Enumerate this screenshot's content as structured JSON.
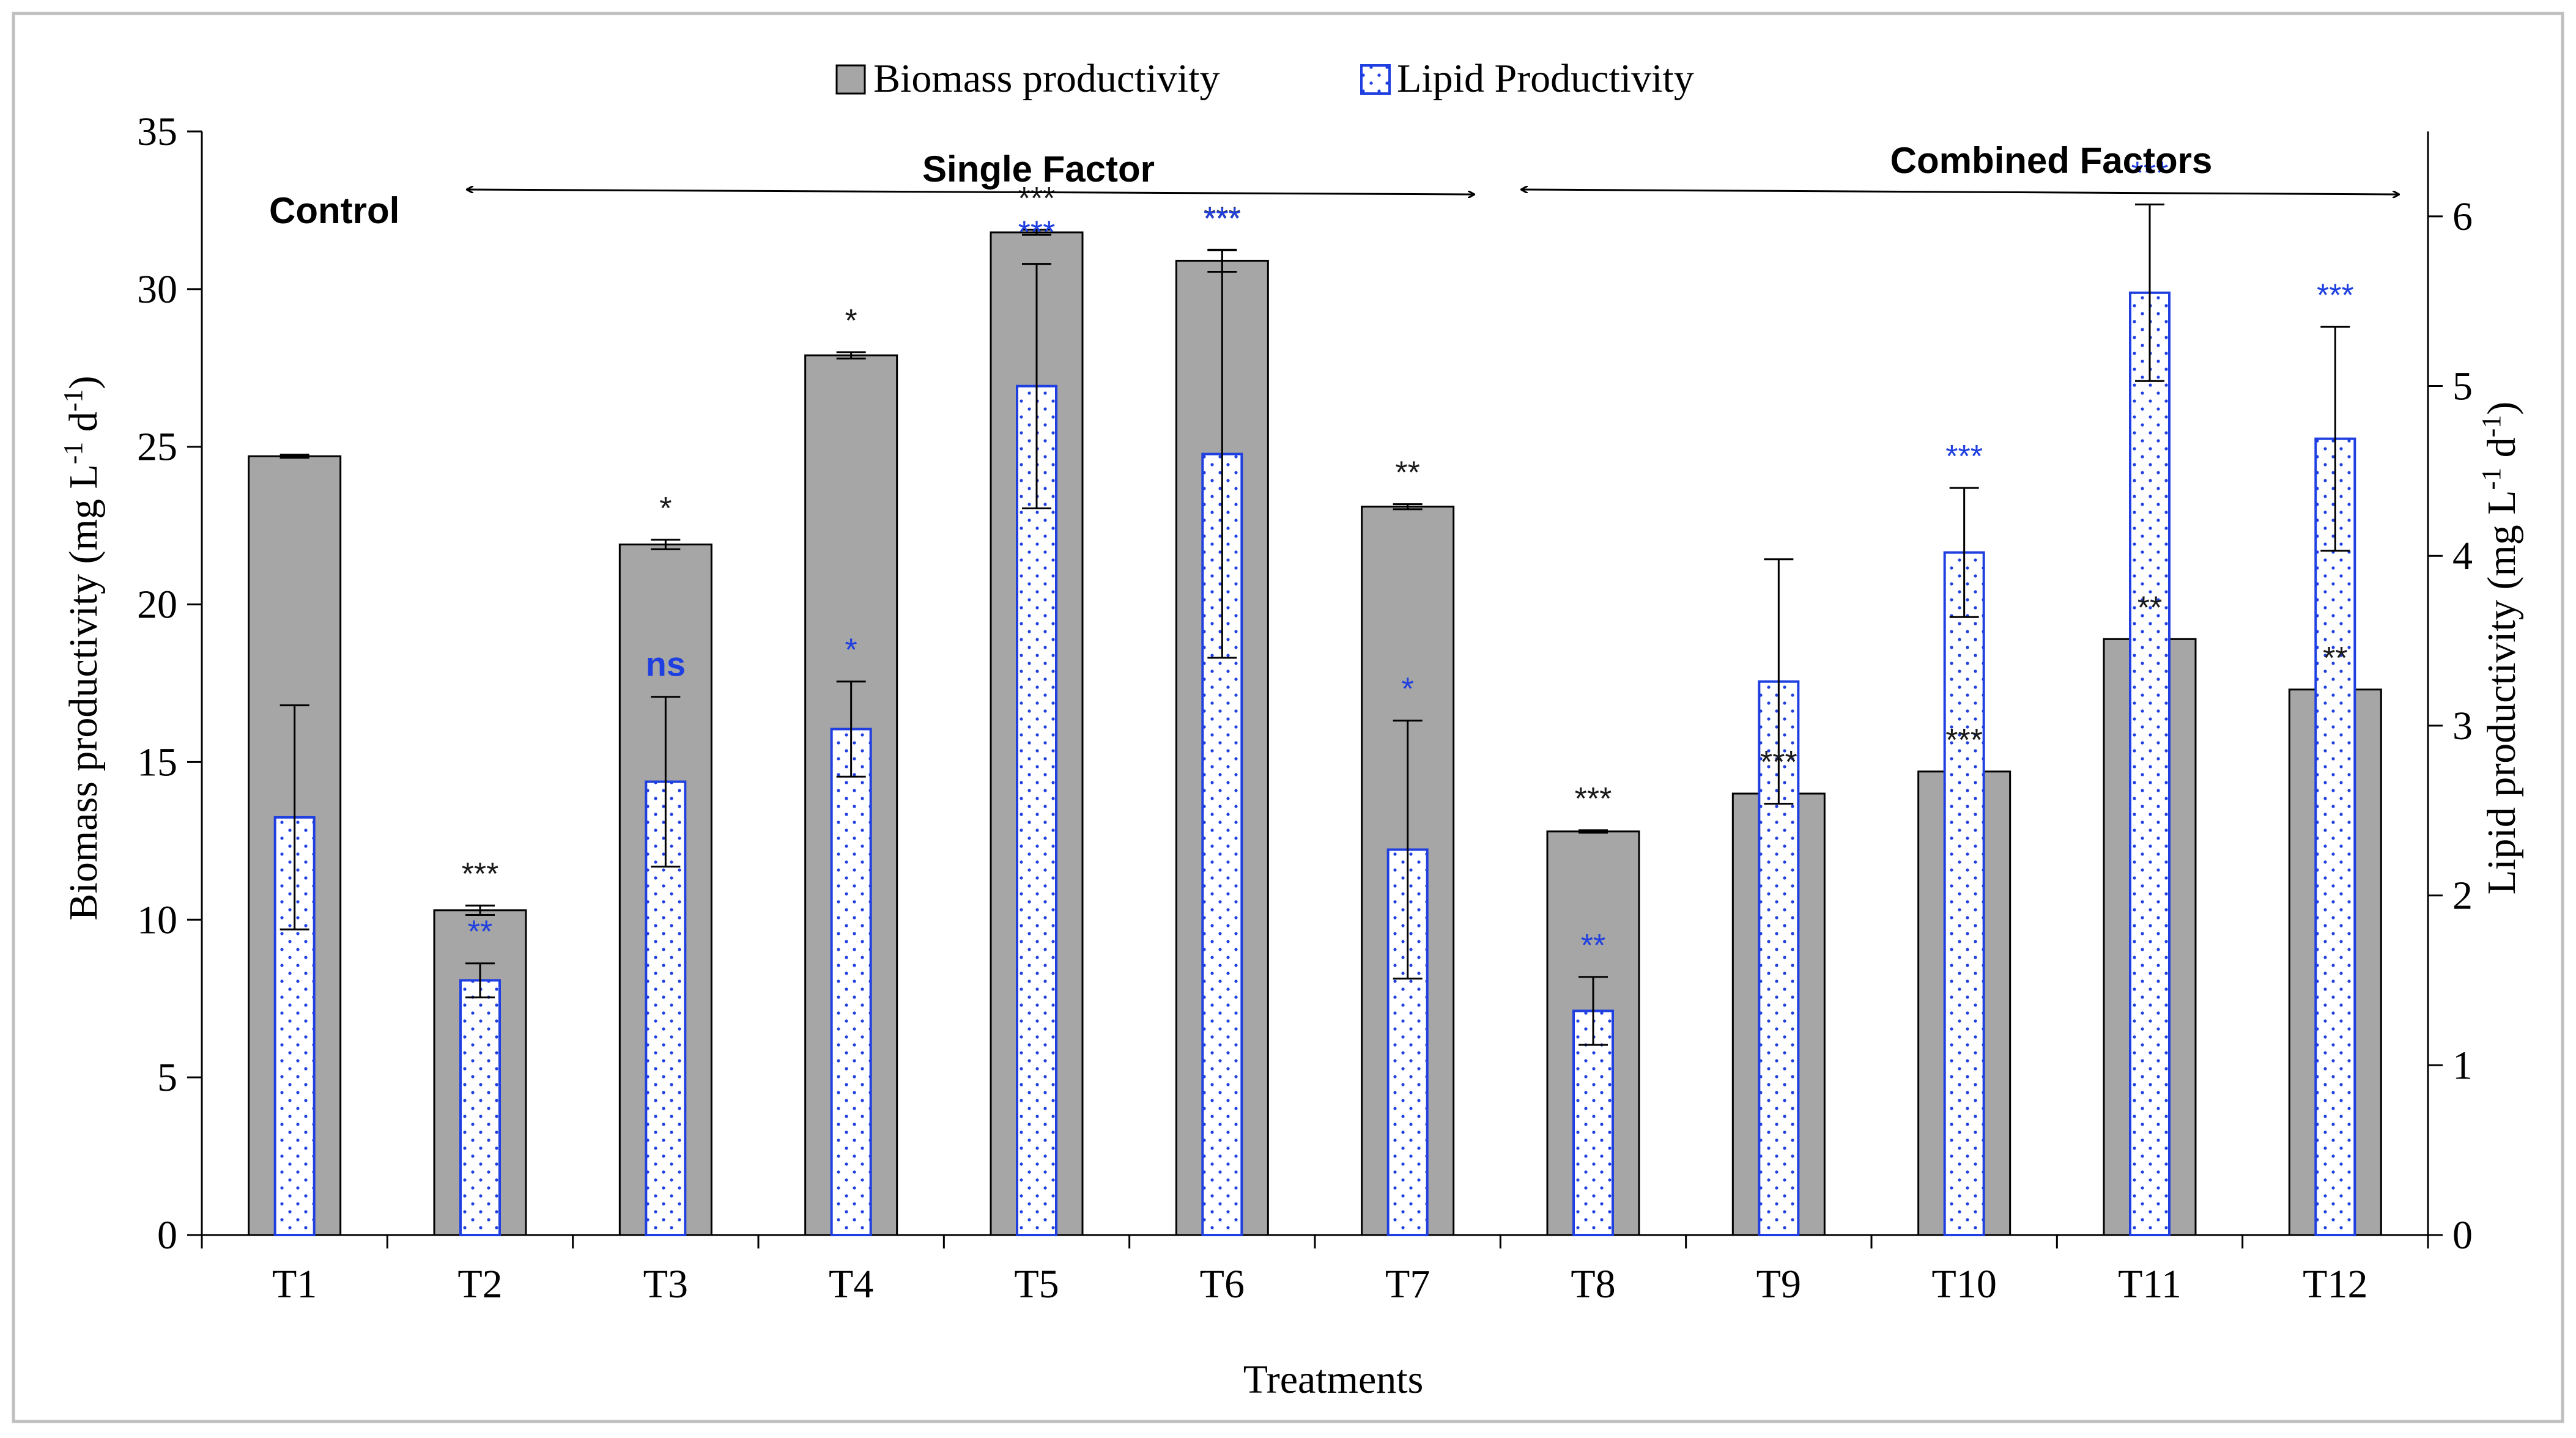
{
  "chart_data": {
    "type": "bar",
    "categories": [
      "T1",
      "T2",
      "T3",
      "T4",
      "T5",
      "T6",
      "T7",
      "T8",
      "T9",
      "T10",
      "T11",
      "T12"
    ],
    "xlabel": "Treatments",
    "ylabel_left": "Biomass  productivity  (mg  L",
    "ylabel_left_sup1": "-1",
    "ylabel_left_mid": " d",
    "ylabel_left_sup2": "-1",
    "ylabel_left_end": ")",
    "ylabel_right": "Lipid productivity  (mg  L",
    "ylabel_right_sup1": "-1",
    "ylabel_right_mid": " d",
    "ylabel_right_sup2": "-1",
    "ylabel_right_end": ")",
    "ylim_left": [
      0,
      35
    ],
    "yticks_left": [
      0,
      5,
      10,
      15,
      20,
      25,
      30,
      35
    ],
    "ylim_right": [
      0,
      6.5
    ],
    "yticks_right": [
      0,
      1,
      2,
      3,
      4,
      5,
      6
    ],
    "legend": {
      "placement": "top-center",
      "entries": [
        "Biomass productivity",
        "Lipid Productivity"
      ]
    },
    "series": [
      {
        "name": "Biomass productivity",
        "axis": "left",
        "color": "#a6a6a6",
        "values": [
          24.7,
          10.3,
          21.9,
          27.9,
          31.8,
          30.9,
          23.1,
          12.8,
          14.0,
          14.7,
          18.9,
          17.3
        ],
        "errors": [
          0.05,
          0.15,
          0.15,
          0.1,
          0.08,
          0.35,
          0.08,
          0.04,
          0.0,
          0.0,
          0.0,
          0.0
        ],
        "significance": [
          "",
          "***",
          "*",
          "*",
          "***",
          "***",
          "**",
          "***",
          "***",
          "***",
          "**",
          "**"
        ]
      },
      {
        "name": "Lipid Productivity",
        "axis": "right",
        "color": "#1f3fe0",
        "values": [
          2.46,
          1.5,
          2.67,
          2.98,
          5.0,
          4.6,
          2.27,
          1.32,
          3.26,
          4.02,
          5.55,
          4.69
        ],
        "errors": [
          0.66,
          0.1,
          0.5,
          0.28,
          0.72,
          1.2,
          0.76,
          0.2,
          0.72,
          0.38,
          0.52,
          0.66
        ],
        "significance": [
          "",
          "**",
          "ns",
          "*",
          "***",
          "***",
          "*",
          "**",
          "",
          "***",
          "***",
          "***"
        ]
      }
    ],
    "annotations": {
      "control": "Control",
      "single_factor": "Single Factor",
      "combined_factors": "Combined Factors"
    }
  }
}
